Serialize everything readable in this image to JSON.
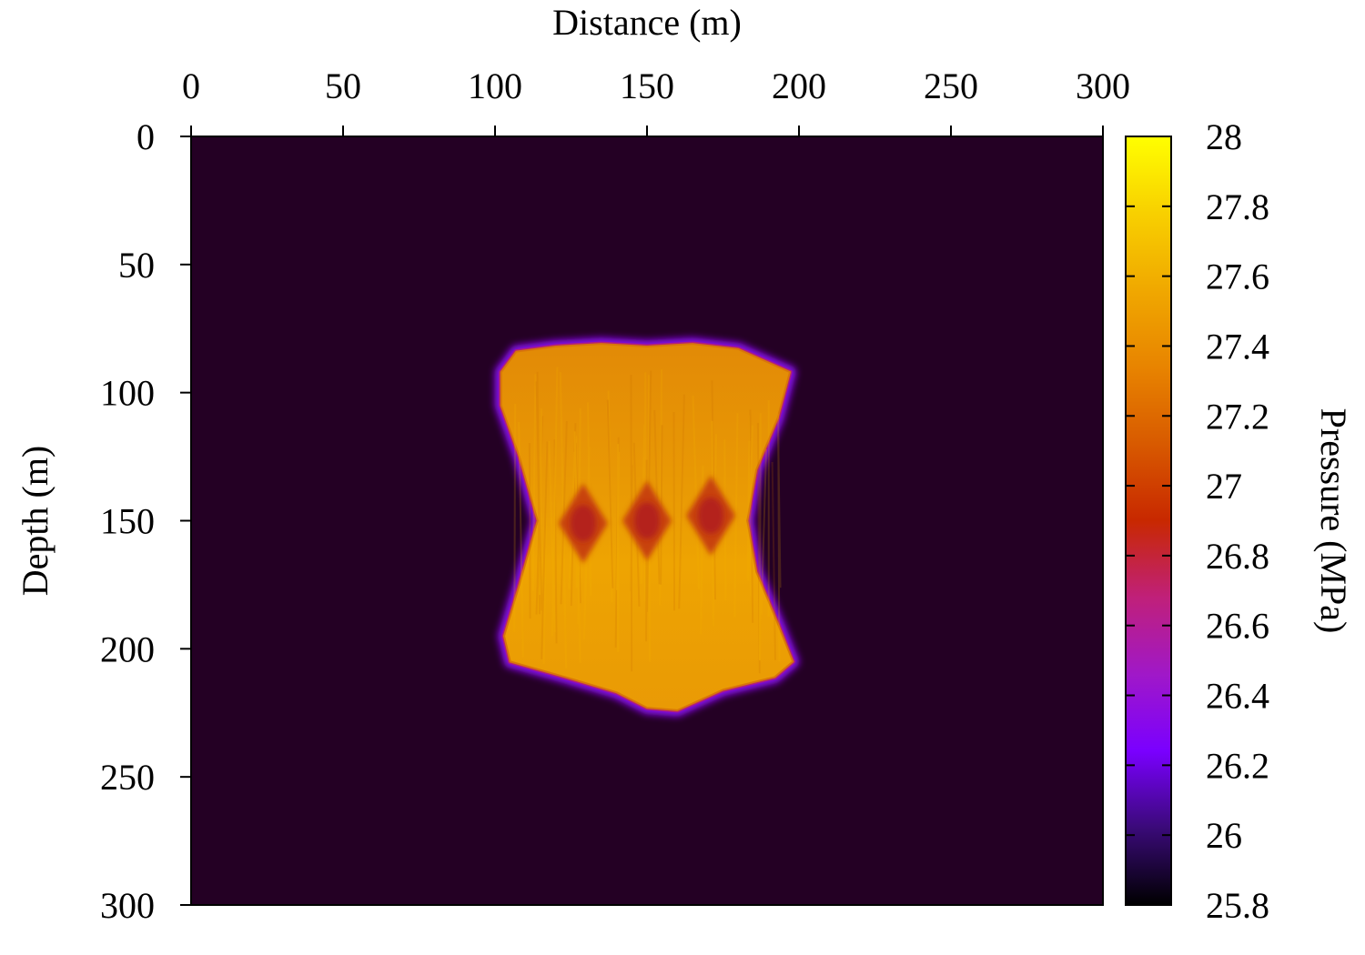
{
  "chart_data": {
    "type": "heatmap",
    "title": "",
    "xlabel": "Distance (m)",
    "ylabel": "Depth (m)",
    "x_axis_position": "top",
    "y_axis_inverted": true,
    "xlim": [
      0,
      300
    ],
    "ylim": [
      0,
      300
    ],
    "x_ticks": [
      "0",
      "50",
      "100",
      "150",
      "200",
      "250",
      "300"
    ],
    "y_ticks": [
      "0",
      "50",
      "100",
      "150",
      "200",
      "250",
      "300"
    ],
    "grid": false,
    "colorbar": {
      "label": "Pressure (MPa)",
      "range": [
        25.8,
        28
      ],
      "ticks": [
        "28",
        "27.8",
        "27.6",
        "27.4",
        "27.2",
        "27",
        "26.8",
        "26.6",
        "26.4",
        "26.2",
        "26",
        "25.8"
      ],
      "placement": "right",
      "colors": [
        "#000000",
        "#3a0a78",
        "#7a00ff",
        "#a018c8",
        "#c0207a",
        "#c82800",
        "#d85a00",
        "#e88400",
        "#f0a800",
        "#f8d000",
        "#ffff00"
      ]
    },
    "background_value": 25.8,
    "pressurized_region": {
      "value_approx": 27.6,
      "x_range": [
        100,
        200
      ],
      "y_range": [
        80,
        226
      ],
      "outline": [
        [
          102,
          92
        ],
        [
          107,
          84
        ],
        [
          120,
          82
        ],
        [
          135,
          81
        ],
        [
          150,
          82
        ],
        [
          165,
          81
        ],
        [
          180,
          83
        ],
        [
          197,
          92
        ],
        [
          193,
          110
        ],
        [
          186,
          130
        ],
        [
          183,
          150
        ],
        [
          186,
          170
        ],
        [
          193,
          190
        ],
        [
          198,
          205
        ],
        [
          192,
          211
        ],
        [
          175,
          216
        ],
        [
          160,
          224
        ],
        [
          150,
          223
        ],
        [
          140,
          217
        ],
        [
          123,
          211
        ],
        [
          105,
          205
        ],
        [
          103,
          195
        ],
        [
          108,
          175
        ],
        [
          114,
          150
        ],
        [
          108,
          125
        ],
        [
          102,
          105
        ]
      ],
      "low_pressure_lenses": [
        {
          "x": 129,
          "y": 151,
          "value_approx": 27.0
        },
        {
          "x": 150,
          "y": 150,
          "value_approx": 27.0
        },
        {
          "x": 171,
          "y": 148,
          "value_approx": 27.0
        }
      ]
    }
  }
}
